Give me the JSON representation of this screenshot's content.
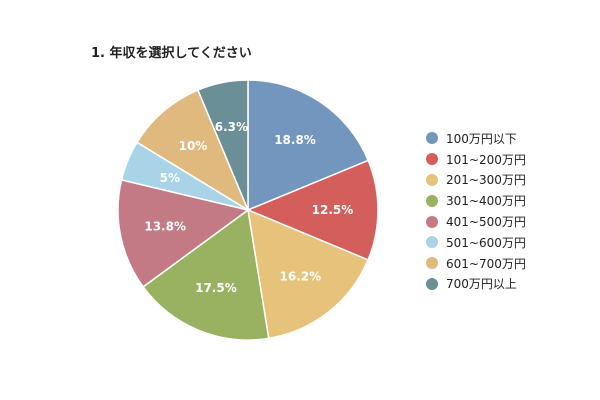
{
  "chart_data": {
    "type": "pie",
    "title": "1. 年収を選択してください",
    "legend_position": "right",
    "slices": [
      {
        "label": "100万円以下",
        "value": 18.8,
        "value_label": "18.8%",
        "color": "#7396bf"
      },
      {
        "label": "101~200万円",
        "value": 12.5,
        "value_label": "12.5%",
        "color": "#d45e5c"
      },
      {
        "label": "201~300万円",
        "value": 16.2,
        "value_label": "16.2%",
        "color": "#e6c27a"
      },
      {
        "label": "301~400万円",
        "value": 17.5,
        "value_label": "17.5%",
        "color": "#99b262"
      },
      {
        "label": "401~500万円",
        "value": 13.8,
        "value_label": "13.8%",
        "color": "#c47a85"
      },
      {
        "label": "501~600万円",
        "value": 5,
        "value_label": "5%",
        "color": "#a9d4e8"
      },
      {
        "label": "601~700万円",
        "value": 10,
        "value_label": "10%",
        "color": "#e0b97e"
      },
      {
        "label": "700万円以上",
        "value": 6.3,
        "value_label": "6.3%",
        "color": "#6b8f96"
      }
    ]
  }
}
